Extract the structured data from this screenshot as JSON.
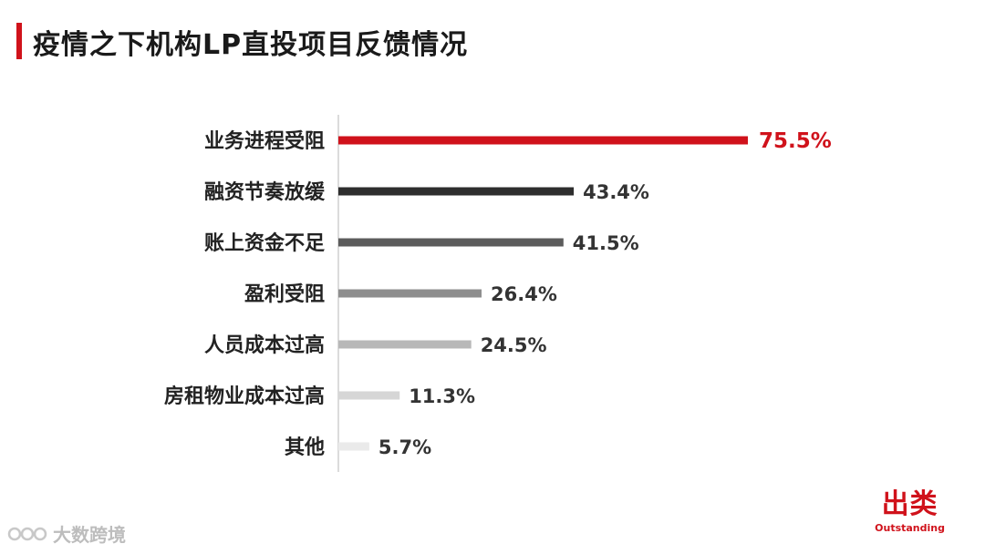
{
  "title": "疫情之下机构LP直投项目反馈情况",
  "brand": {
    "cn": "出类",
    "en": "Outstanding"
  },
  "watermark": "大数跨境",
  "chart_data": {
    "type": "bar",
    "orientation": "horizontal",
    "categories": [
      "业务进程受阻",
      "融资节奏放缓",
      "账上资金不足",
      "盈利受阻",
      "人员成本过高",
      "房租物业成本过高",
      "其他"
    ],
    "values": [
      75.5,
      43.4,
      41.5,
      26.4,
      24.5,
      11.3,
      5.7
    ],
    "value_labels": [
      "75.5%",
      "43.4%",
      "41.5%",
      "26.4%",
      "24.5%",
      "11.3%",
      "5.7%"
    ],
    "unit": "%",
    "colors": [
      "#d0121b",
      "#2e2e2e",
      "#5c5c5c",
      "#8e8e8e",
      "#b8b8b8",
      "#d6d6d6",
      "#eaeaea"
    ],
    "label_colors": [
      "#d0121b",
      "#333333",
      "#333333",
      "#333333",
      "#333333",
      "#333333",
      "#333333"
    ],
    "xlim": [
      0,
      100
    ],
    "grid": false,
    "legend": false
  }
}
